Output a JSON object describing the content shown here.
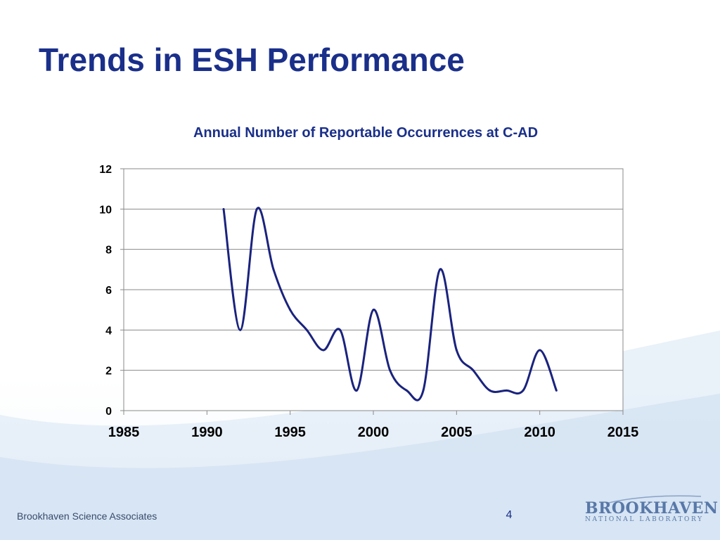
{
  "slide": {
    "title": "Trends in ESH Performance",
    "footer_left": "Brookhaven Science Associates",
    "page_number": "4",
    "logo_main": "BROOKHAVEN",
    "logo_sub": "NATIONAL LABORATORY"
  },
  "colors": {
    "title": "#1a2f8a",
    "line": "#1a237e",
    "grid": "#8a8a8a"
  },
  "chart_data": {
    "type": "line",
    "title": "Annual Number of Reportable Occurrences at C-AD",
    "xlabel": "",
    "ylabel": "",
    "xlim": [
      1985,
      2015
    ],
    "ylim": [
      0,
      12
    ],
    "x_ticks": [
      "1985",
      "1990",
      "1995",
      "2000",
      "2005",
      "2010",
      "2015"
    ],
    "y_ticks": [
      "0",
      "2",
      "4",
      "6",
      "8",
      "10",
      "12"
    ],
    "grid": "horizontal",
    "smoothed": true,
    "legend": "none",
    "series": [
      {
        "x": [
          1991,
          1992,
          1993,
          1994,
          1995,
          1996,
          1997,
          1998,
          1999,
          2000,
          2001,
          2002,
          2003,
          2004,
          2005,
          2006,
          2007,
          2008,
          2009,
          2010,
          2011
        ],
        "values": [
          10,
          4,
          10,
          7,
          5,
          4,
          3,
          4,
          1,
          5,
          2,
          1,
          1,
          7,
          3,
          2,
          1,
          1,
          1,
          3,
          1
        ]
      }
    ]
  }
}
